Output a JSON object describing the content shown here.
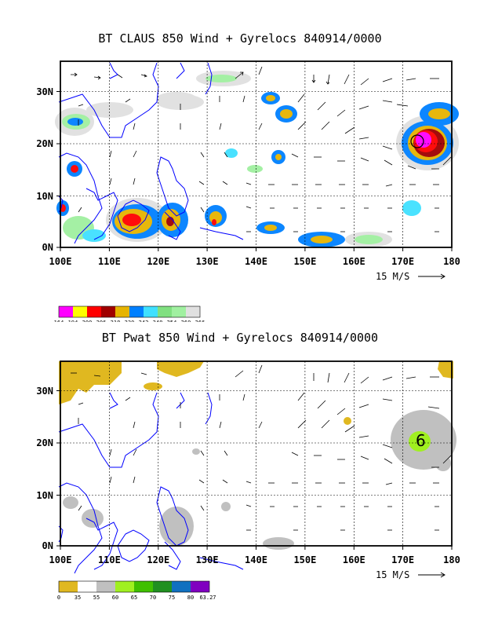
{
  "colors": {
    "coast": "#0000ff",
    "grid": "#000000",
    "arrow": "#000000"
  },
  "panels": [
    {
      "id": "top",
      "title": "BT CLAUS 850 Wind + Gyrelocs 840914/0000",
      "x_ticks": [
        "100E",
        "110E",
        "120E",
        "130E",
        "140E",
        "150E",
        "160E",
        "170E",
        "180"
      ],
      "y_ticks": [
        "0N",
        "10N",
        "20N",
        "30N"
      ],
      "ref_vector_label": "15 M/S",
      "legend": {
        "labels": [
          "164",
          "194",
          "200",
          "206",
          "218",
          "230",
          "242",
          "248",
          "254",
          "260",
          "266"
        ],
        "colors": [
          "#ff00ff",
          "#ffff00",
          "#ff0000",
          "#a00000",
          "#e6b400",
          "#0080ff",
          "#40e0ff",
          "#80e080",
          "#a0f0a0",
          "#e0e0e0"
        ]
      }
    },
    {
      "id": "bottom",
      "title": "BT Pwat 850 Wind + Gyrelocs 840914/0000",
      "x_ticks": [
        "100E",
        "110E",
        "120E",
        "130E",
        "140E",
        "150E",
        "160E",
        "170E",
        "180"
      ],
      "y_ticks": [
        "0N",
        "10N",
        "20N",
        "30N"
      ],
      "ref_vector_label": "15 M/S",
      "legend": {
        "labels": [
          "0",
          "35",
          "55",
          "60",
          "65",
          "70",
          "75",
          "80",
          "63.27"
        ],
        "colors": [
          "#e0b820",
          "#ffffff",
          "#c0c0c0",
          "#a0f020",
          "#40c000",
          "#209020",
          "#1070c0",
          "#8000c0"
        ]
      },
      "gyre_marker": "6"
    }
  ]
}
